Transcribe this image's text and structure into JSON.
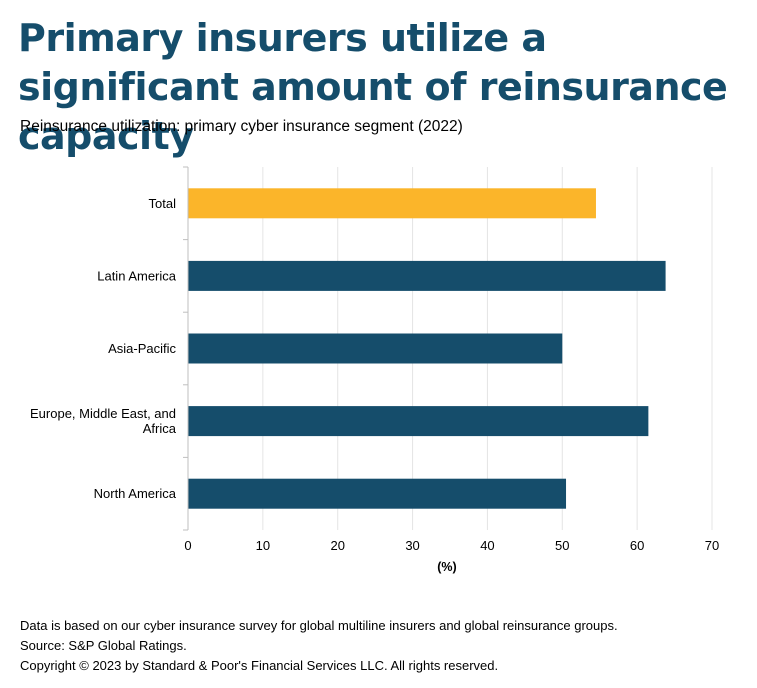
{
  "header": {
    "title": "Primary insurers utilize a significant amount of reinsurance capacity",
    "subtitle": "Reinsurance utilization: primary cyber insurance segment (2022)"
  },
  "footer": {
    "note": "Data is based on our cyber insurance survey for global multiline insurers and global reinsurance groups.",
    "source": "Source: S&P Global Ratings.",
    "copyright": "Copyright © 2023 by Standard & Poor's Financial Services LLC. All rights reserved."
  },
  "chart_data": {
    "type": "bar",
    "orientation": "horizontal",
    "categories": [
      "Total",
      "Latin America",
      "Asia-Pacific",
      "Europe, Middle East, and Africa",
      "North America"
    ],
    "category_label_lines": [
      [
        "Total"
      ],
      [
        "Latin America"
      ],
      [
        "Asia-Pacific"
      ],
      [
        "Europe, Middle East, and",
        "Africa"
      ],
      [
        "North America"
      ]
    ],
    "values": [
      54.5,
      63.8,
      50.0,
      61.5,
      50.5
    ],
    "colors": [
      "#fbb52a",
      "#154d6b",
      "#154d6b",
      "#154d6b",
      "#154d6b"
    ],
    "xlabel": "(%)",
    "ylabel": "",
    "xlim": [
      0,
      70
    ],
    "xticks": [
      0,
      10,
      20,
      30,
      40,
      50,
      60,
      70
    ],
    "grid": true,
    "legend": "none"
  }
}
